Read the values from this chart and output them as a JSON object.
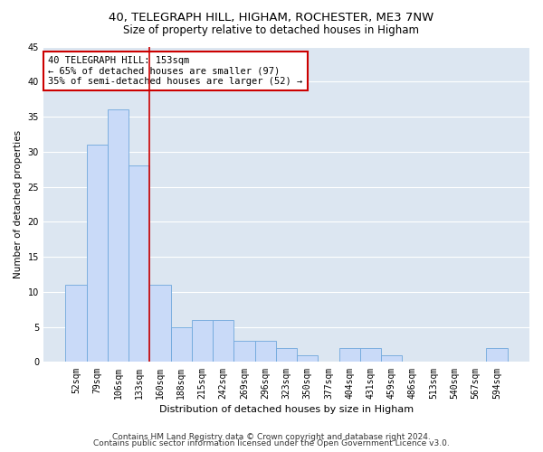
{
  "title1": "40, TELEGRAPH HILL, HIGHAM, ROCHESTER, ME3 7NW",
  "title2": "Size of property relative to detached houses in Higham",
  "xlabel": "Distribution of detached houses by size in Higham",
  "ylabel": "Number of detached properties",
  "categories": [
    "52sqm",
    "79sqm",
    "106sqm",
    "133sqm",
    "160sqm",
    "188sqm",
    "215sqm",
    "242sqm",
    "269sqm",
    "296sqm",
    "323sqm",
    "350sqm",
    "377sqm",
    "404sqm",
    "431sqm",
    "459sqm",
    "486sqm",
    "513sqm",
    "540sqm",
    "567sqm",
    "594sqm"
  ],
  "values": [
    11,
    31,
    36,
    28,
    11,
    5,
    6,
    6,
    3,
    3,
    2,
    1,
    0,
    2,
    2,
    1,
    0,
    0,
    0,
    0,
    2
  ],
  "bar_color": "#c9daf8",
  "bar_edge_color": "#6fa8dc",
  "reference_line_x": 3.5,
  "annotation_line1": "40 TELEGRAPH HILL: 153sqm",
  "annotation_line2": "← 65% of detached houses are smaller (97)",
  "annotation_line3": "35% of semi-detached houses are larger (52) →",
  "annotation_box_color": "white",
  "annotation_box_edge": "#cc0000",
  "ylim": [
    0,
    45
  ],
  "yticks": [
    0,
    5,
    10,
    15,
    20,
    25,
    30,
    35,
    40,
    45
  ],
  "background_color": "#dce6f1",
  "grid_color": "#ffffff",
  "footer1": "Contains HM Land Registry data © Crown copyright and database right 2024.",
  "footer2": "Contains public sector information licensed under the Open Government Licence v3.0.",
  "title1_fontsize": 9.5,
  "title2_fontsize": 8.5,
  "xlabel_fontsize": 8,
  "ylabel_fontsize": 7.5,
  "tick_fontsize": 7,
  "annotation_fontsize": 7.5,
  "footer_fontsize": 6.5
}
